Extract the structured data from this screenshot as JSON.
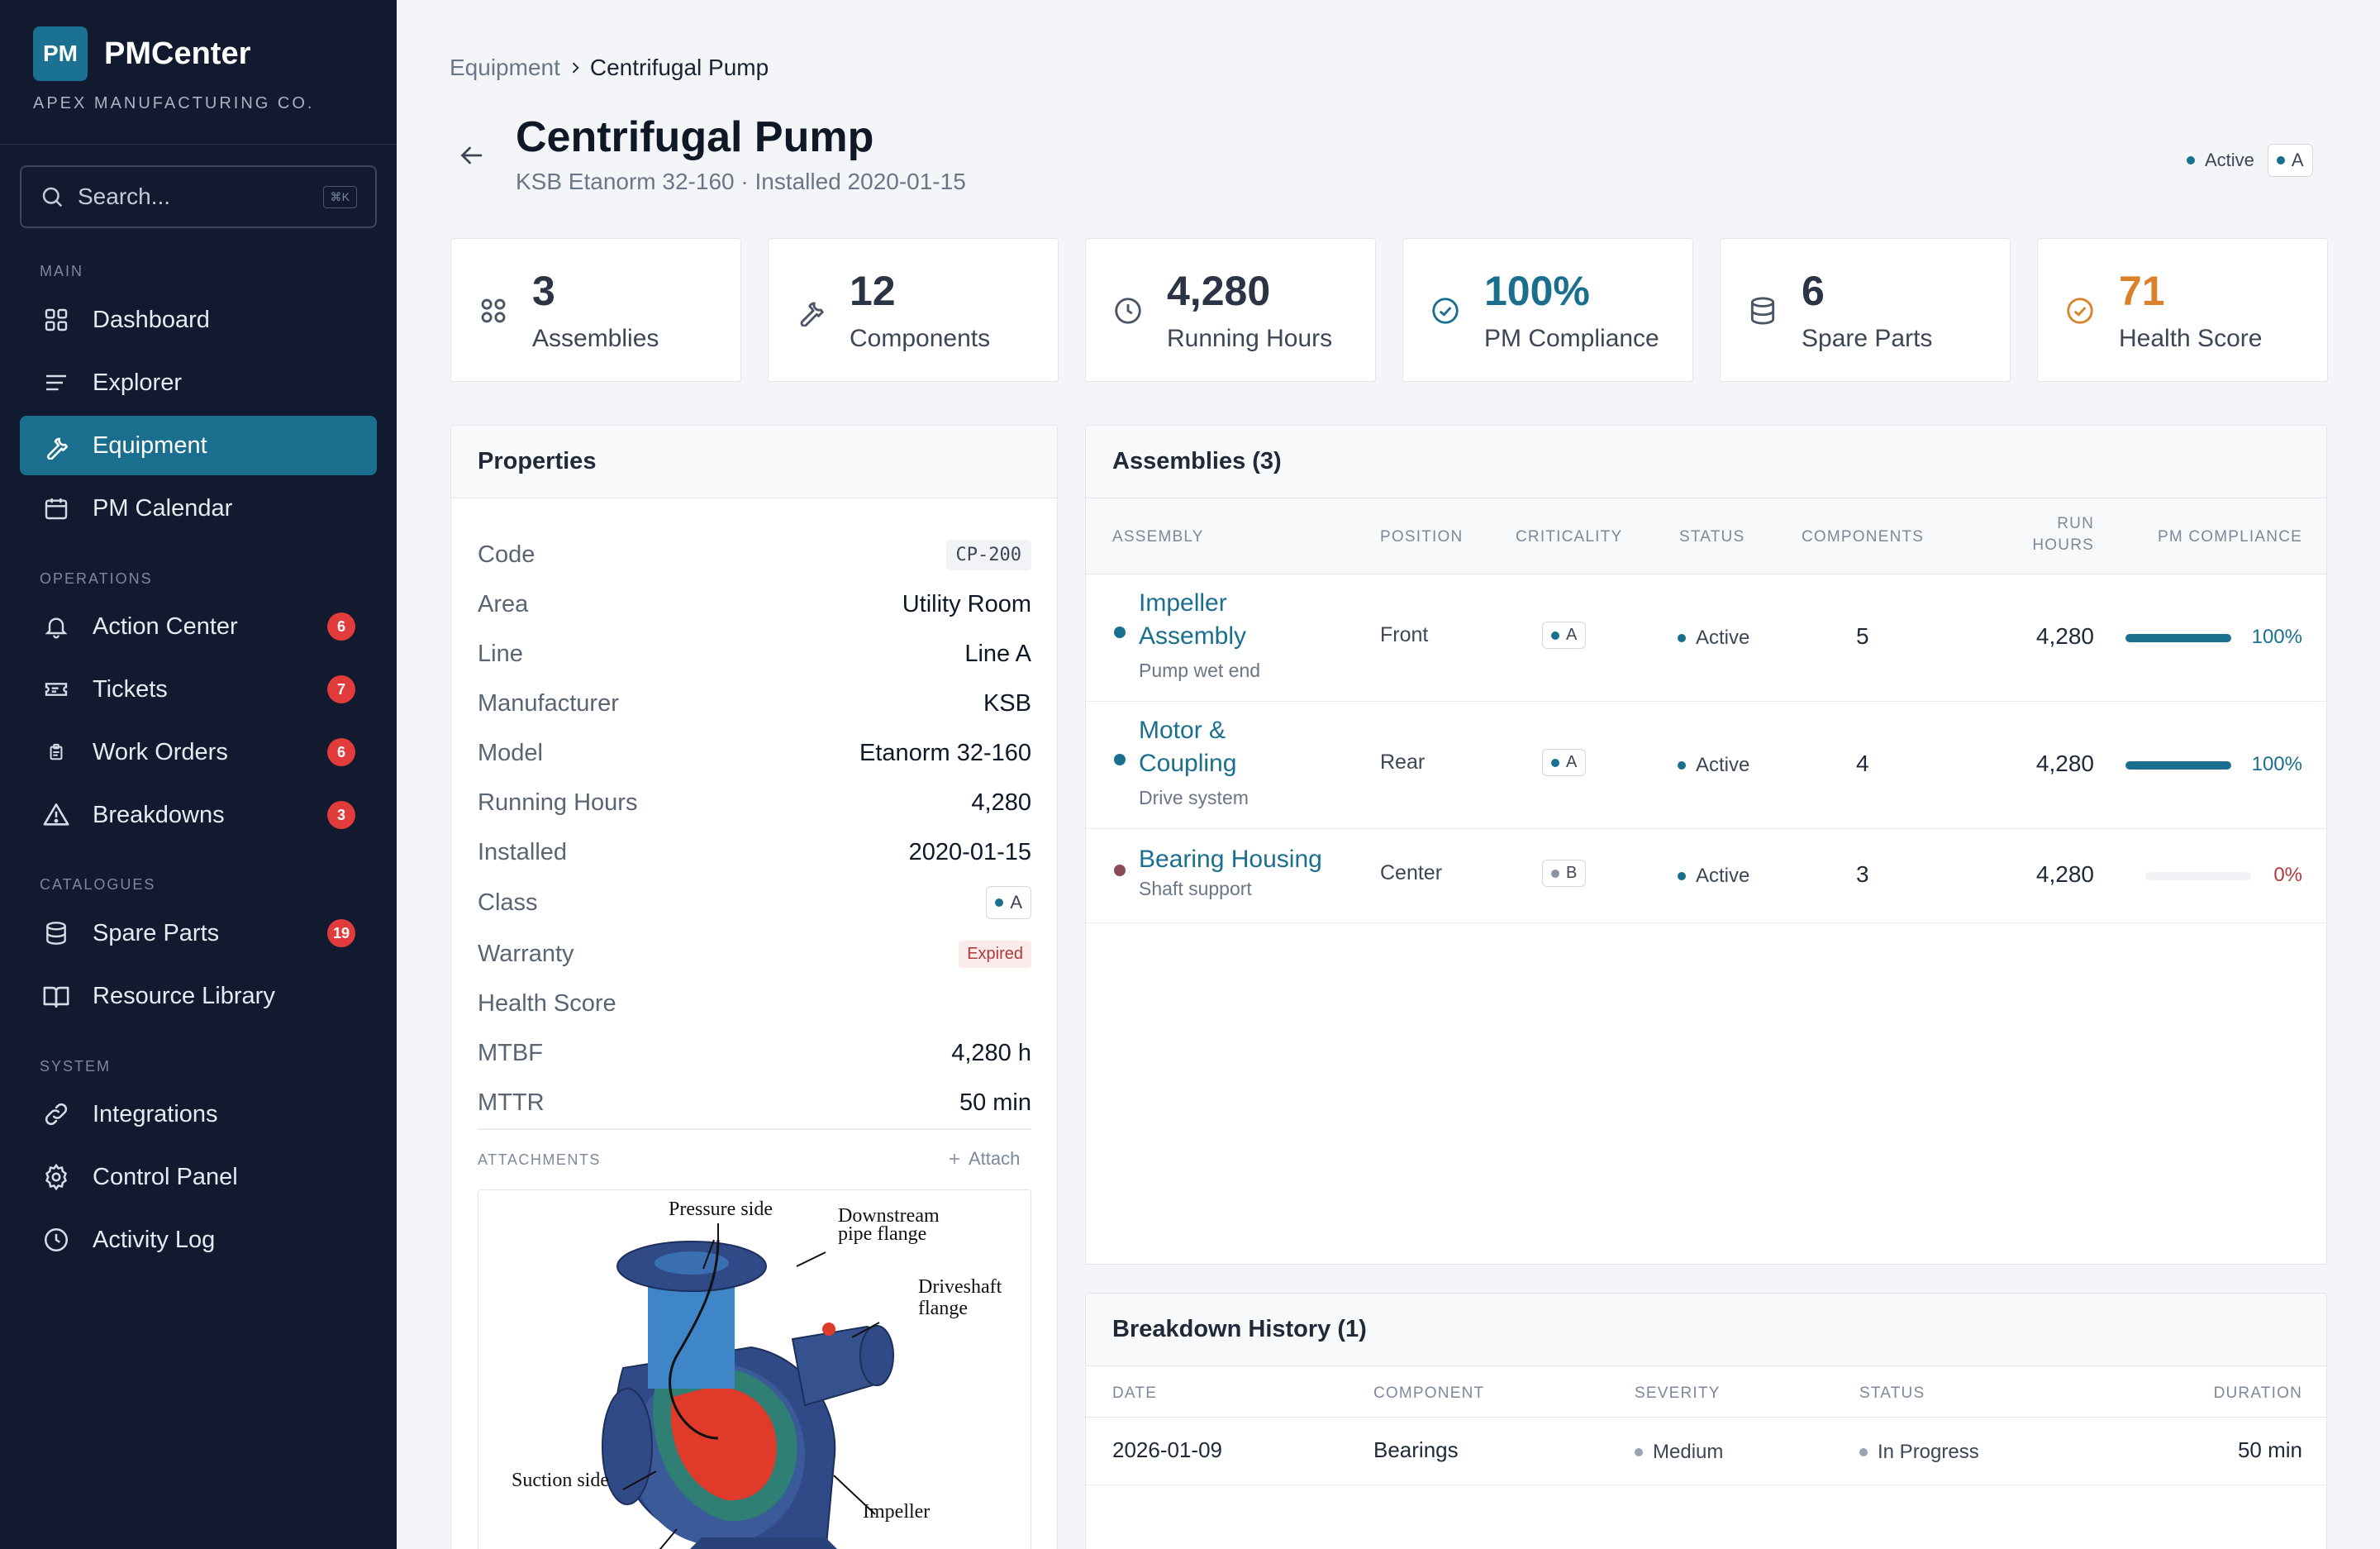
{
  "brand": {
    "logo": "PM",
    "name": "PMCenter",
    "company": "APEX MANUFACTURING CO."
  },
  "search": {
    "placeholder": "Search...",
    "shortcut": "⌘K"
  },
  "sidebar": {
    "sections": {
      "main": "MAIN",
      "operations": "OPERATIONS",
      "catalogues": "CATALOGUES",
      "system": "SYSTEM"
    },
    "items": {
      "dashboard": {
        "label": "Dashboard",
        "icon": "grid-icon"
      },
      "explorer": {
        "label": "Explorer",
        "icon": "lines-icon"
      },
      "equipment": {
        "label": "Equipment",
        "icon": "wrench-icon",
        "active": true
      },
      "pm_calendar": {
        "label": "PM Calendar",
        "icon": "calendar-icon"
      },
      "action_center": {
        "label": "Action Center",
        "icon": "bell-icon",
        "badge": "6"
      },
      "tickets": {
        "label": "Tickets",
        "icon": "ticket-icon",
        "badge": "7"
      },
      "work_orders": {
        "label": "Work Orders",
        "icon": "clipboard-icon",
        "badge": "6"
      },
      "breakdowns": {
        "label": "Breakdowns",
        "icon": "warning-icon",
        "badge": "3"
      },
      "spare_parts": {
        "label": "Spare Parts",
        "icon": "database-icon",
        "badge": "19"
      },
      "resource_library": {
        "label": "Resource Library",
        "icon": "book-icon"
      },
      "integrations": {
        "label": "Integrations",
        "icon": "link-icon"
      },
      "control_panel": {
        "label": "Control Panel",
        "icon": "gear-icon"
      },
      "activity_log": {
        "label": "Activity Log",
        "icon": "clock-icon"
      }
    }
  },
  "breadcrumb": {
    "parent": "Equipment",
    "current": "Centrifugal Pump"
  },
  "header": {
    "title": "Centrifugal Pump",
    "subtitle": "KSB Etanorm 32-160 · Installed 2020-01-15",
    "status": "Active",
    "class": "A"
  },
  "stats": {
    "assemblies": {
      "value": "3",
      "label": "Assemblies"
    },
    "components": {
      "value": "12",
      "label": "Components"
    },
    "running_hours": {
      "value": "4,280",
      "label": "Running Hours"
    },
    "pm_compliance": {
      "value": "100%",
      "label": "PM Compliance"
    },
    "spare_parts": {
      "value": "6",
      "label": "Spare Parts"
    },
    "health_score": {
      "value": "71",
      "label": "Health Score"
    }
  },
  "properties": {
    "title": "Properties",
    "code": {
      "label": "Code",
      "value": "CP-200"
    },
    "area": {
      "label": "Area",
      "value": "Utility Room"
    },
    "line": {
      "label": "Line",
      "value": "Line A"
    },
    "manufacturer": {
      "label": "Manufacturer",
      "value": "KSB"
    },
    "model": {
      "label": "Model",
      "value": "Etanorm 32-160"
    },
    "running_hours": {
      "label": "Running Hours",
      "value": "4,280"
    },
    "installed": {
      "label": "Installed",
      "value": "2020-01-15"
    },
    "class": {
      "label": "Class",
      "value": "A"
    },
    "warranty": {
      "label": "Warranty",
      "value": "Expired"
    },
    "health_score": {
      "label": "Health Score"
    },
    "mtbf": {
      "label": "MTBF",
      "value": "4,280 h"
    },
    "mttr": {
      "label": "MTTR",
      "value": "50 min"
    },
    "attachments_label": "ATTACHMENTS",
    "attach_button": "Attach",
    "diagram": {
      "pressure_side": "Pressure side",
      "downstream_1": "Downstream",
      "downstream_2": "pipe flange",
      "driveshaft_1": "Driveshaft",
      "driveshaft_2": "flange",
      "suction_side": "Suction side",
      "impeller": "Impeller"
    }
  },
  "assemblies": {
    "title": "Assemblies (3)",
    "columns": {
      "assembly": "ASSEMBLY",
      "position": "POSITION",
      "criticality": "CRITICALITY",
      "status": "STATUS",
      "components": "COMPONENTS",
      "run_hours_1": "RUN",
      "run_hours_2": "HOURS",
      "pm_compliance": "PM COMPLIANCE"
    },
    "rows": [
      {
        "name_1": "Impeller",
        "name_2": "Assembly",
        "desc": "Pump wet end",
        "position": "Front",
        "criticality": "A",
        "status": "Active",
        "components": "5",
        "run_hours": "4,280",
        "compliance": "100%",
        "compliance_frac": 1.0,
        "dot_color": "#1b6f8e"
      },
      {
        "name_1": "Motor &",
        "name_2": "Coupling",
        "desc": "Drive system",
        "position": "Rear",
        "criticality": "A",
        "status": "Active",
        "components": "4",
        "run_hours": "4,280",
        "compliance": "100%",
        "compliance_frac": 1.0,
        "dot_color": "#1b6f8e"
      },
      {
        "name_1": "Bearing Housing",
        "desc": "Shaft support",
        "position": "Center",
        "criticality": "B",
        "status": "Active",
        "components": "3",
        "run_hours": "4,280",
        "compliance": "0%",
        "compliance_frac": 0.0,
        "dot_color": "#8a4a55"
      }
    ]
  },
  "breakdowns": {
    "title": "Breakdown History (1)",
    "columns": {
      "date": "DATE",
      "component": "COMPONENT",
      "severity": "SEVERITY",
      "status": "STATUS",
      "duration": "DURATION"
    },
    "rows": [
      {
        "date": "2026-01-09",
        "component": "Bearings",
        "severity": "Medium",
        "status": "In Progress",
        "duration": "50 min"
      }
    ]
  },
  "colors": {
    "accent": "#1b6f8e",
    "sidebar_bg": "#111a2e",
    "health": "#d9822b",
    "badge": "#e23b3b",
    "danger": "#b03a3a"
  }
}
